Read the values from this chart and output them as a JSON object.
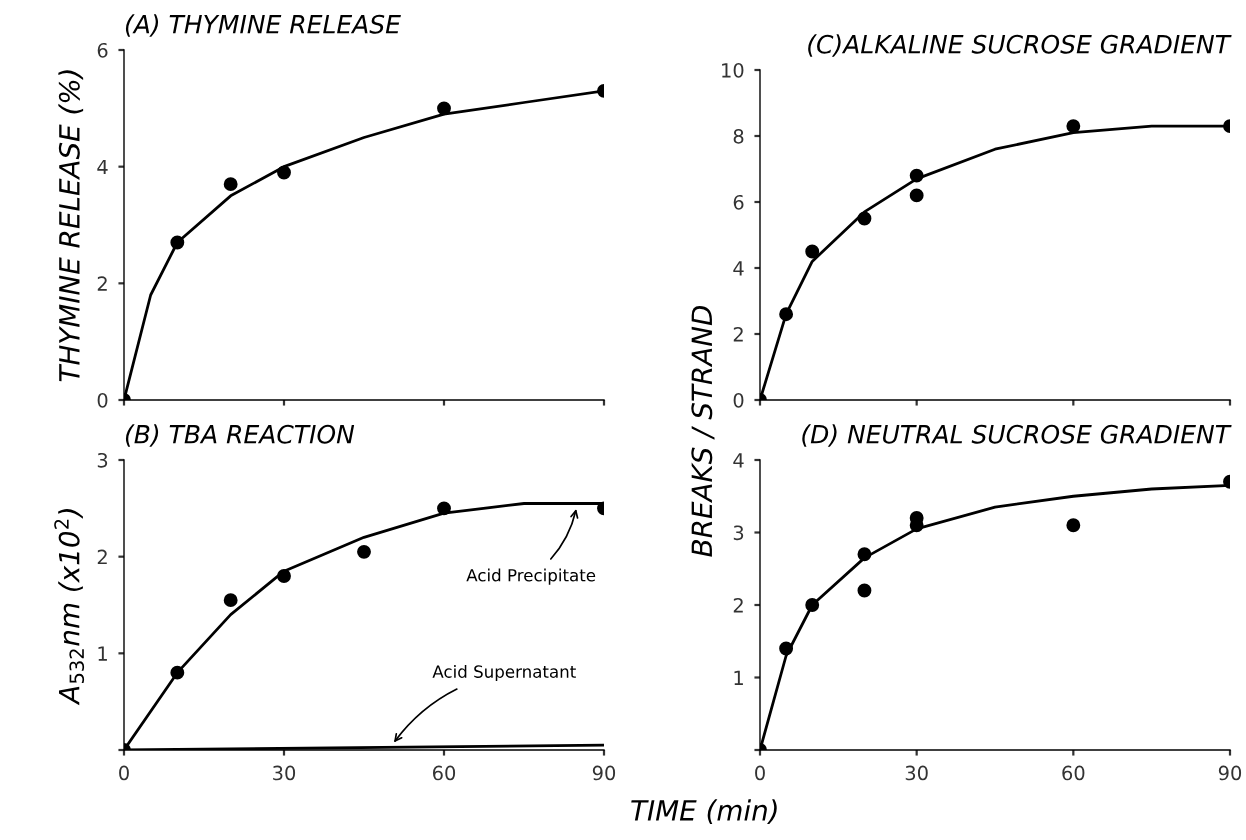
{
  "chart_data": [
    {
      "type": "scatter",
      "title": "(A) THYMINE RELEASE",
      "ylabel": "THYMINE RELEASE (%)",
      "xlim": [
        0,
        90
      ],
      "xticks": [
        {
          "value": 0,
          "label": null
        },
        {
          "value": 30,
          "label": null
        },
        {
          "value": 60,
          "label": null
        },
        {
          "value": 90,
          "label": null
        }
      ],
      "ylim": [
        0,
        6
      ],
      "yticks": [
        0,
        2,
        4,
        6
      ],
      "tick_labels": "y",
      "grid": false,
      "legend": false,
      "series": [
        {
          "marker": "circle",
          "color": "#000000",
          "x": [
            0,
            10,
            20,
            30,
            60,
            90
          ],
          "values": [
            0,
            2.7,
            3.7,
            3.9,
            5.0,
            5.3
          ]
        },
        {
          "type": "line",
          "marker": "none",
          "line_style": "solid",
          "color": "#000000",
          "x": [
            0,
            5,
            10,
            20,
            30,
            45,
            60,
            75,
            90
          ],
          "values": [
            0,
            1.8,
            2.7,
            3.5,
            4.0,
            4.5,
            4.9,
            5.1,
            5.3
          ]
        }
      ]
    },
    {
      "type": "scatter",
      "title": "(B) TBA REACTION",
      "ylabel": "A$_{532}$nm (x10$^{2}$)",
      "xlabel": "TIME (min)",
      "xlim": [
        0,
        90
      ],
      "xticks": [
        0,
        30,
        60,
        90
      ],
      "ylim": [
        0,
        3
      ],
      "yticks": [
        {
          "value": 0,
          "label": null
        },
        1,
        2,
        3
      ],
      "grid": false,
      "legend": false,
      "annotations": [
        {
          "text": "Acid Precipitate",
          "x": 85,
          "y": 2.55
        },
        {
          "text": "Acid Supernatant",
          "x": 50,
          "y": 0.03
        }
      ],
      "series": [
        {
          "marker": "circle",
          "color": "#000000",
          "x": [
            0,
            10,
            20,
            30,
            45,
            60,
            90
          ],
          "values": [
            0,
            0.8,
            1.55,
            1.8,
            2.05,
            2.5,
            2.5
          ]
        },
        {
          "type": "line",
          "marker": "none",
          "line_style": "solid",
          "color": "#000000",
          "x": [
            0,
            10,
            20,
            30,
            45,
            60,
            75,
            90
          ],
          "values": [
            0,
            0.8,
            1.4,
            1.85,
            2.2,
            2.45,
            2.55,
            2.55
          ]
        },
        {
          "type": "line",
          "marker": "none",
          "line_style": "solid",
          "color": "#000000",
          "x": [
            0,
            90
          ],
          "values": [
            0,
            0.05
          ]
        }
      ]
    },
    {
      "type": "scatter",
      "title": "(C)ALKALINE SUCROSE GRADIENT",
      "xlim": [
        0,
        90
      ],
      "xticks": [
        {
          "value": 0,
          "label": null
        },
        {
          "value": 30,
          "label": null
        },
        {
          "value": 60,
          "label": null
        },
        {
          "value": 90,
          "label": null
        }
      ],
      "ylim": [
        0,
        10
      ],
      "yticks": [
        0,
        2,
        4,
        6,
        8,
        10
      ],
      "tick_labels": "y",
      "grid": false,
      "legend": false,
      "series": [
        {
          "marker": "circle",
          "color": "#000000",
          "x": [
            0,
            5,
            10,
            20,
            30,
            30,
            60,
            90
          ],
          "values": [
            0,
            2.6,
            4.5,
            5.5,
            6.8,
            6.2,
            8.3,
            8.3
          ]
        },
        {
          "type": "line",
          "marker": "none",
          "line_style": "solid",
          "color": "#000000",
          "x": [
            0,
            5,
            10,
            20,
            30,
            45,
            60,
            75,
            90
          ],
          "values": [
            0,
            2.6,
            4.2,
            5.7,
            6.7,
            7.6,
            8.1,
            8.3,
            8.3
          ]
        }
      ]
    },
    {
      "type": "scatter",
      "title": "(D) NEUTRAL SUCROSE GRADIENT",
      "ylabel": "BREAKS / STRAND",
      "xlim": [
        0,
        90
      ],
      "xticks": [
        0,
        30,
        60,
        90
      ],
      "ylim": [
        0,
        4
      ],
      "yticks": [
        {
          "value": 0,
          "label": null
        },
        1,
        2,
        3,
        4
      ],
      "grid": false,
      "legend": false,
      "series": [
        {
          "marker": "circle",
          "color": "#000000",
          "x": [
            0,
            5,
            10,
            20,
            20,
            30,
            30,
            60,
            90
          ],
          "values": [
            0,
            1.4,
            2.0,
            2.7,
            2.2,
            3.2,
            3.1,
            3.1,
            3.7
          ]
        },
        {
          "type": "line",
          "marker": "none",
          "line_style": "solid",
          "color": "#000000",
          "x": [
            0,
            5,
            10,
            20,
            30,
            45,
            60,
            75,
            90
          ],
          "values": [
            0,
            1.3,
            2.0,
            2.65,
            3.05,
            3.35,
            3.5,
            3.6,
            3.65
          ]
        }
      ]
    }
  ]
}
